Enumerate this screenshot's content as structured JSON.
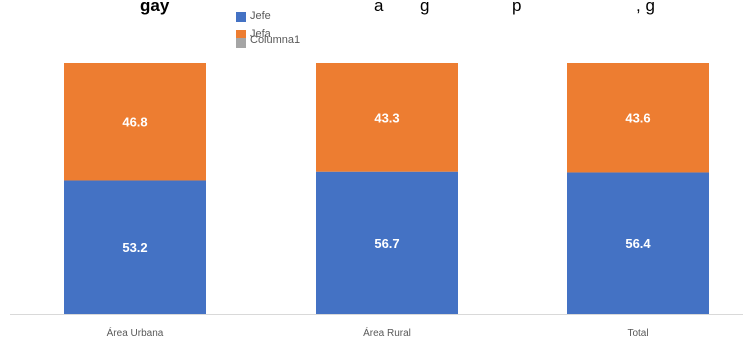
{
  "title_fragments": [
    "gay",
    "a",
    "g",
    "p",
    ", g"
  ],
  "legend": [
    {
      "label": "Jefe",
      "color": "#4472c4"
    },
    {
      "label": "Jefa",
      "color": "#ed7d31"
    },
    {
      "label": "Columna1",
      "color": "#a5a5a5"
    }
  ],
  "chart_data": {
    "type": "bar",
    "stacked": true,
    "categories": [
      "Área Urbana",
      "Área Rural",
      "Total"
    ],
    "series": [
      {
        "name": "Jefe",
        "values": [
          53.2,
          56.7,
          56.4
        ],
        "color": "#4472c4"
      },
      {
        "name": "Jefa",
        "values": [
          46.8,
          43.3,
          43.6
        ],
        "color": "#ed7d31"
      }
    ],
    "ylim": [
      0,
      100
    ],
    "grid": false,
    "legend_position": "top"
  }
}
